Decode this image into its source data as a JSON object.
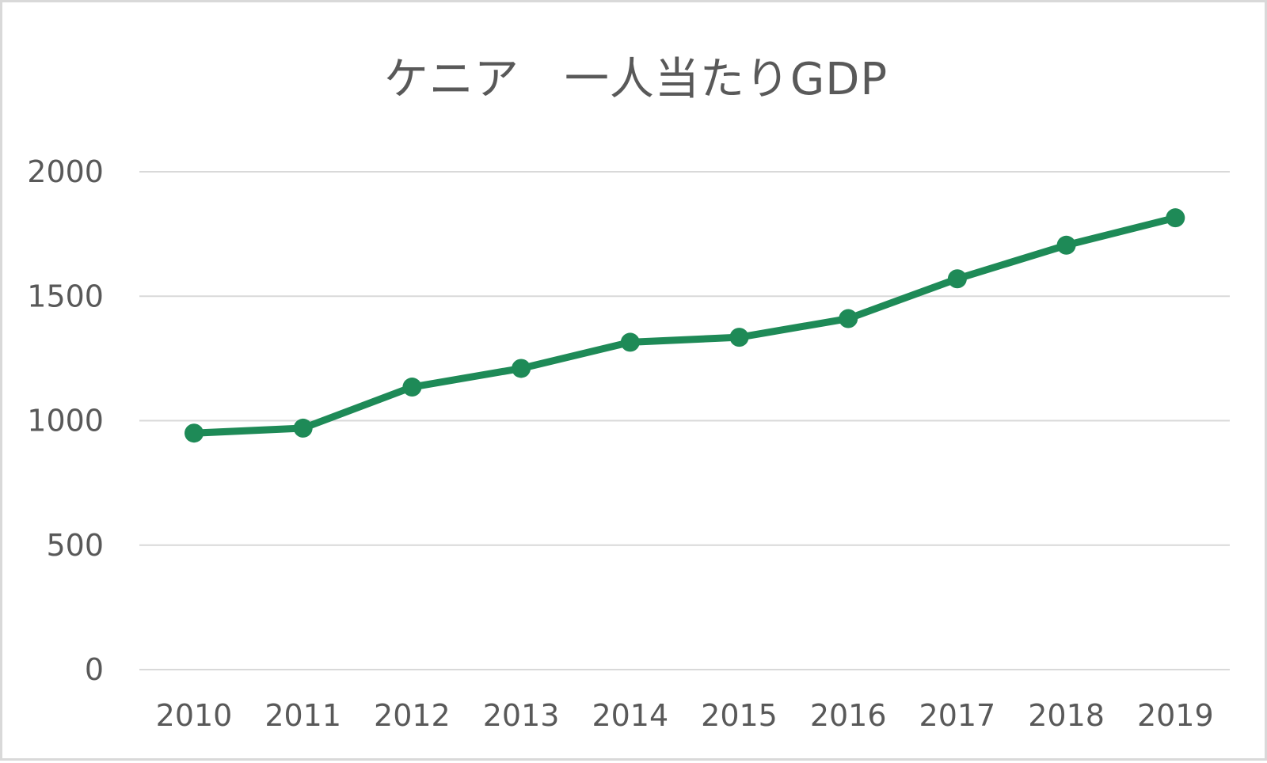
{
  "chart_data": {
    "type": "line",
    "title": "ケニア　一人当たりGDP",
    "xlabel": "",
    "ylabel": "",
    "categories": [
      "2010",
      "2011",
      "2012",
      "2013",
      "2014",
      "2015",
      "2016",
      "2017",
      "2018",
      "2019"
    ],
    "series": [
      {
        "values": [
          950,
          970,
          1135,
          1210,
          1315,
          1335,
          1410,
          1570,
          1705,
          1815
        ]
      }
    ],
    "y_ticks": [
      "0",
      "500",
      "1000",
      "1500",
      "2000"
    ],
    "ylim": [
      0,
      2000
    ],
    "grid": true,
    "markers": true,
    "legend": "none",
    "colors": {
      "line": "#1e8a57",
      "grid": "#d9d9d9",
      "text": "#595959"
    }
  }
}
